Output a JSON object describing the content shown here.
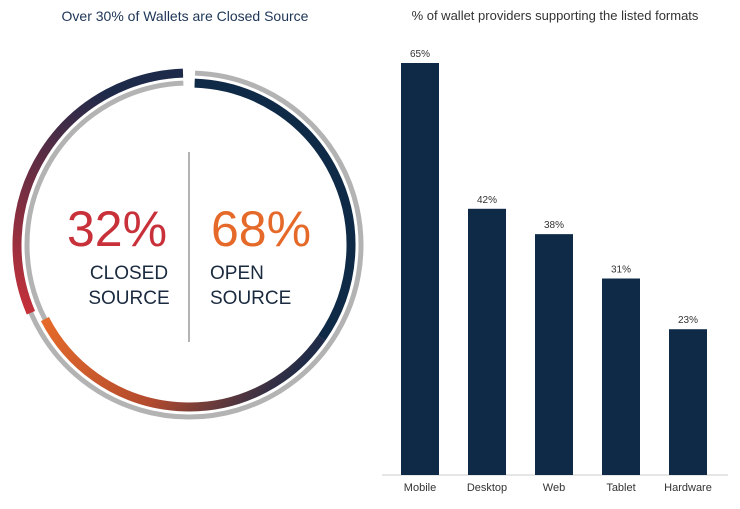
{
  "colors": {
    "navy": "#0f2a47",
    "gray": "#b3b3b3",
    "red": "#c8313a",
    "orange": "#e56a2a",
    "divider": "#9a9a9a",
    "label": "#333333"
  },
  "chart_data": [
    {
      "type": "pie",
      "title": "Over 30% of Wallets are Closed Source",
      "slices": [
        {
          "name": "CLOSED SOURCE",
          "value": 32,
          "label": "32%",
          "line1": "CLOSED",
          "line2": "SOURCE"
        },
        {
          "name": "OPEN SOURCE",
          "value": 68,
          "label": "68%",
          "line1": "OPEN",
          "line2": "SOURCE"
        }
      ]
    },
    {
      "type": "bar",
      "title": "% of wallet providers supporting the listed formats",
      "categories": [
        "Mobile",
        "Desktop",
        "Web",
        "Tablet",
        "Hardware"
      ],
      "values": [
        65,
        42,
        38,
        31,
        23
      ],
      "value_labels": [
        "65%",
        "42%",
        "38%",
        "31%",
        "23%"
      ],
      "ylim": [
        0,
        65
      ]
    }
  ]
}
